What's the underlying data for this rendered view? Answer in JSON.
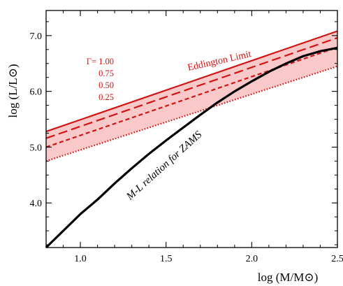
{
  "chart_data": {
    "type": "line",
    "xlabel": "log (M/M⊙)",
    "ylabel": "log (L/L⊙)",
    "xlim": [
      0.8,
      2.5
    ],
    "ylim": [
      3.2,
      7.45
    ],
    "x_ticks": [
      1.0,
      1.5,
      2.0,
      2.5
    ],
    "x_tick_labels": [
      "1.0",
      "1.5",
      "2.0",
      "2.5"
    ],
    "y_ticks": [
      4.0,
      5.0,
      6.0,
      7.0
    ],
    "y_tick_labels": [
      "4.0",
      "5.0",
      "6.0",
      "7.0"
    ],
    "grid": false,
    "shaded_region": {
      "between": [
        "Γ= 1.00",
        "0.25"
      ],
      "color": "#f9c8c8"
    },
    "series": [
      {
        "name": "Γ= 1.00",
        "color": "#d21414",
        "dash": "solid",
        "x": [
          0.8,
          2.5
        ],
        "y": [
          5.28,
          7.08
        ]
      },
      {
        "name": "0.75",
        "color": "#d21414",
        "dash": "long-dash",
        "x": [
          0.8,
          2.5
        ],
        "y": [
          5.16,
          6.96
        ]
      },
      {
        "name": "0.50",
        "color": "#d21414",
        "dash": "short-dash",
        "x": [
          0.8,
          2.5
        ],
        "y": [
          5.0,
          6.79
        ]
      },
      {
        "name": "0.25",
        "color": "#d21414",
        "dash": "dotted",
        "x": [
          0.8,
          2.5
        ],
        "y": [
          4.75,
          6.45
        ]
      },
      {
        "name": "M-L relation for ZAMS",
        "color": "#000000",
        "dash": "solid",
        "x": [
          0.8,
          0.9,
          1.0,
          1.1,
          1.2,
          1.3,
          1.4,
          1.5,
          1.6,
          1.7,
          1.8,
          1.9,
          2.0,
          2.1,
          2.2,
          2.3,
          2.4,
          2.5
        ],
        "y": [
          3.2,
          3.5,
          3.8,
          4.06,
          4.35,
          4.62,
          4.88,
          5.12,
          5.35,
          5.58,
          5.8,
          6.0,
          6.18,
          6.35,
          6.5,
          6.63,
          6.72,
          6.78
        ]
      }
    ],
    "annotations": {
      "eddington": "Eddington Limit",
      "zams": "M-L relation for ZAMS",
      "gamma_labels": [
        "Γ= 1.00",
        "0.75",
        "0.50",
        "0.25"
      ]
    }
  }
}
